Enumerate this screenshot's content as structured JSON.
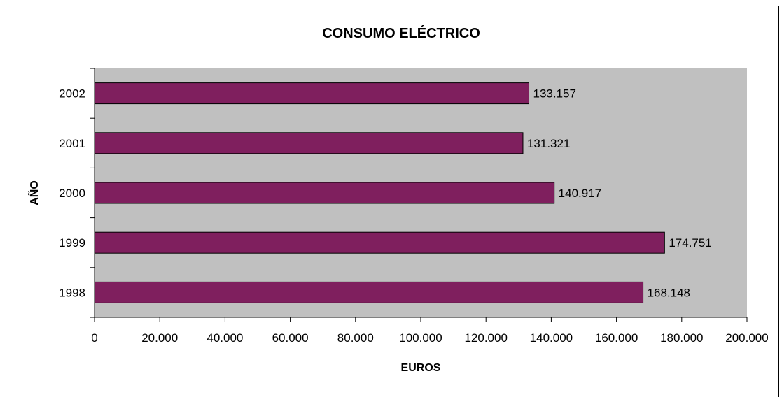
{
  "chart_data": {
    "type": "bar",
    "orientation": "horizontal",
    "title": "CONSUMO ELÉCTRICO",
    "xlabel": "EUROS",
    "ylabel": "AÑO",
    "categories": [
      "1998",
      "1999",
      "2000",
      "2001",
      "2002"
    ],
    "values": [
      168148,
      174751,
      140917,
      131321,
      133157
    ],
    "value_labels": [
      "168.148",
      "174.751",
      "140.917",
      "131.321",
      "133.157"
    ],
    "xlim": [
      0,
      200000
    ],
    "x_ticks": [
      0,
      20000,
      40000,
      60000,
      80000,
      100000,
      120000,
      140000,
      160000,
      180000,
      200000
    ],
    "x_tick_labels": [
      "0",
      "20.000",
      "40.000",
      "60.000",
      "80.000",
      "100.000",
      "120.000",
      "140.000",
      "160.000",
      "180.000",
      "200.000"
    ],
    "grid": false,
    "legend": "none",
    "colors": {
      "bar_fill": "#7f1f5e",
      "plot_background": "#c0c0c0",
      "chart_background": "#ffffff"
    }
  }
}
